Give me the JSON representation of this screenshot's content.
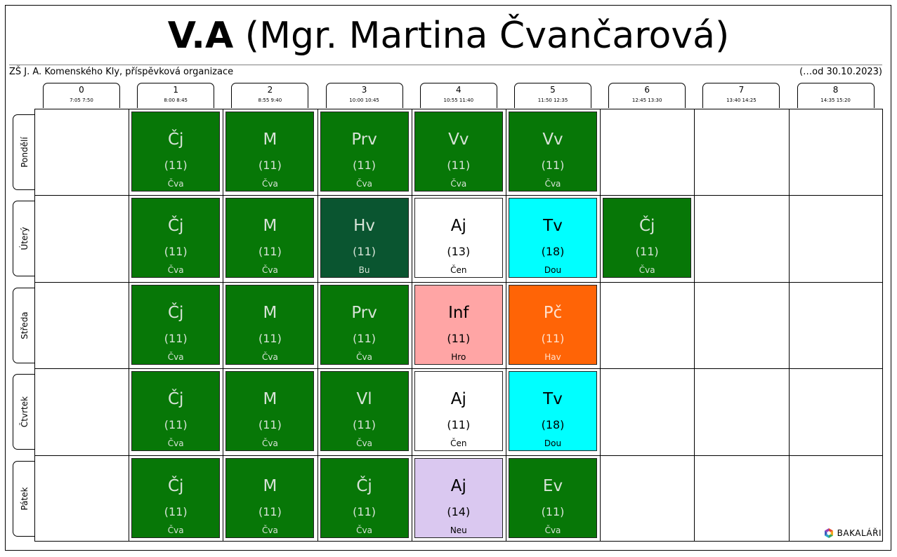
{
  "header": {
    "class_name": "V.A",
    "teacher": "(Mgr. Martina Čvančarová)",
    "school": "ZŠ J. A. Komenského Kly, příspěvková organizace",
    "valid_from": "(…od 30.10.2023)"
  },
  "periods": [
    {
      "num": "0",
      "time": "7:05  7:50"
    },
    {
      "num": "1",
      "time": "8:00  8:45"
    },
    {
      "num": "2",
      "time": "8:55  9:40"
    },
    {
      "num": "3",
      "time": "10:00 10:45"
    },
    {
      "num": "4",
      "time": "10:55 11:40"
    },
    {
      "num": "5",
      "time": "11:50 12:35"
    },
    {
      "num": "6",
      "time": "12:45 13:30"
    },
    {
      "num": "7",
      "time": "13:40 14:25"
    },
    {
      "num": "8",
      "time": "14:35 15:20"
    }
  ],
  "days": [
    "Pondělí",
    "Úterý",
    "Středa",
    "Čtvrtek",
    "Pátek"
  ],
  "colors": {
    "green": "#077707",
    "dark_green": "#0a5530",
    "white": "#ffffff",
    "cyan": "#00ffff",
    "pink": "#ffa5a5",
    "orange": "#ff6406",
    "lavender": "#dac8f0"
  },
  "lessons": [
    {
      "day": 0,
      "period": 1,
      "subject": "Čj",
      "room": "(11)",
      "teacher": "Čva",
      "color": "green"
    },
    {
      "day": 0,
      "period": 2,
      "subject": "M",
      "room": "(11)",
      "teacher": "Čva",
      "color": "green"
    },
    {
      "day": 0,
      "period": 3,
      "subject": "Prv",
      "room": "(11)",
      "teacher": "Čva",
      "color": "green"
    },
    {
      "day": 0,
      "period": 4,
      "subject": "Vv",
      "room": "(11)",
      "teacher": "Čva",
      "color": "green"
    },
    {
      "day": 0,
      "period": 5,
      "subject": "Vv",
      "room": "(11)",
      "teacher": "Čva",
      "color": "green"
    },
    {
      "day": 1,
      "period": 1,
      "subject": "Čj",
      "room": "(11)",
      "teacher": "Čva",
      "color": "green"
    },
    {
      "day": 1,
      "period": 2,
      "subject": "M",
      "room": "(11)",
      "teacher": "Čva",
      "color": "green"
    },
    {
      "day": 1,
      "period": 3,
      "subject": "Hv",
      "room": "(11)",
      "teacher": "Bu",
      "color": "dark_green"
    },
    {
      "day": 1,
      "period": 4,
      "subject": "Aj",
      "room": "(13)",
      "teacher": "Čen",
      "color": "white"
    },
    {
      "day": 1,
      "period": 5,
      "subject": "Tv",
      "room": "(18)",
      "teacher": "Dou",
      "color": "cyan"
    },
    {
      "day": 1,
      "period": 6,
      "subject": "Čj",
      "room": "(11)",
      "teacher": "Čva",
      "color": "green"
    },
    {
      "day": 2,
      "period": 1,
      "subject": "Čj",
      "room": "(11)",
      "teacher": "Čva",
      "color": "green"
    },
    {
      "day": 2,
      "period": 2,
      "subject": "M",
      "room": "(11)",
      "teacher": "Čva",
      "color": "green"
    },
    {
      "day": 2,
      "period": 3,
      "subject": "Prv",
      "room": "(11)",
      "teacher": "Čva",
      "color": "green"
    },
    {
      "day": 2,
      "period": 4,
      "subject": "Inf",
      "room": "(11)",
      "teacher": "Hro",
      "color": "pink"
    },
    {
      "day": 2,
      "period": 5,
      "subject": "Pč",
      "room": "(11)",
      "teacher": "Hav",
      "color": "orange"
    },
    {
      "day": 3,
      "period": 1,
      "subject": "Čj",
      "room": "(11)",
      "teacher": "Čva",
      "color": "green"
    },
    {
      "day": 3,
      "period": 2,
      "subject": "M",
      "room": "(11)",
      "teacher": "Čva",
      "color": "green"
    },
    {
      "day": 3,
      "period": 3,
      "subject": "Vl",
      "room": "(11)",
      "teacher": "Čva",
      "color": "green"
    },
    {
      "day": 3,
      "period": 4,
      "subject": "Aj",
      "room": "(11)",
      "teacher": "Čen",
      "color": "white"
    },
    {
      "day": 3,
      "period": 5,
      "subject": "Tv",
      "room": "(18)",
      "teacher": "Dou",
      "color": "cyan"
    },
    {
      "day": 4,
      "period": 1,
      "subject": "Čj",
      "room": "(11)",
      "teacher": "Čva",
      "color": "green"
    },
    {
      "day": 4,
      "period": 2,
      "subject": "M",
      "room": "(11)",
      "teacher": "Čva",
      "color": "green"
    },
    {
      "day": 4,
      "period": 3,
      "subject": "Čj",
      "room": "(11)",
      "teacher": "Čva",
      "color": "green"
    },
    {
      "day": 4,
      "period": 4,
      "subject": "Aj",
      "room": "(14)",
      "teacher": "Neu",
      "color": "lavender"
    },
    {
      "day": 4,
      "period": 5,
      "subject": "Ev",
      "room": "(11)",
      "teacher": "Čva",
      "color": "green"
    }
  ],
  "footer": {
    "brand": "BAKALÁŘI",
    "brand_icon": "bakalari-logo-icon"
  }
}
